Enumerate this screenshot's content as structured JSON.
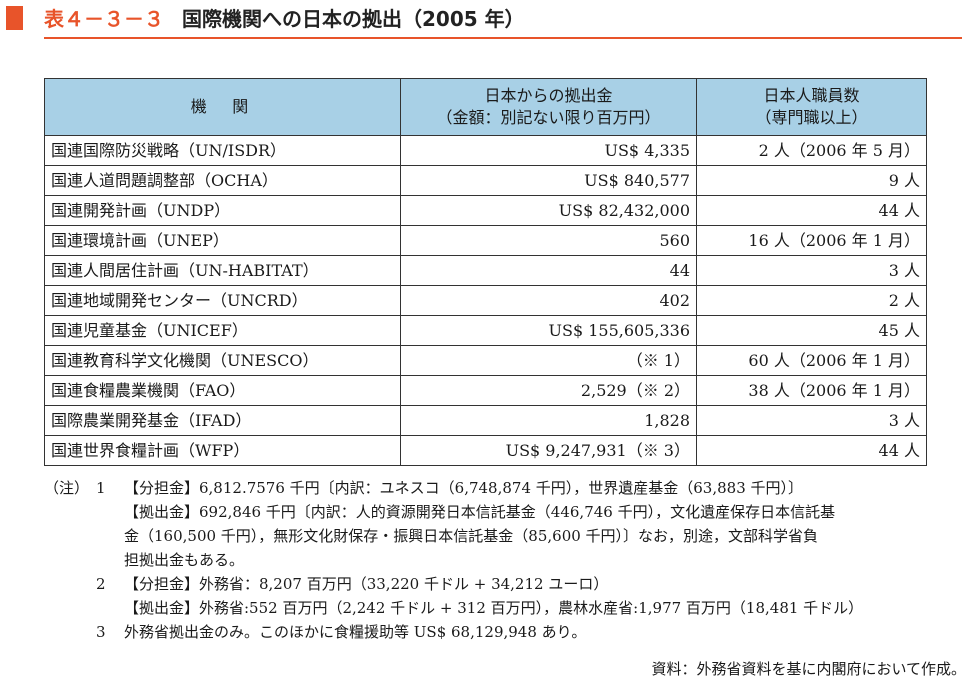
{
  "title": {
    "label": "表４－３－３",
    "text": "国際機関への日本の拠出（2005 年）"
  },
  "table": {
    "headers": {
      "org": "機関",
      "amount_line1": "日本からの拠出金",
      "amount_line2": "（金額：別記ない限り百万円）",
      "staff_line1": "日本人職員数",
      "staff_line2": "（専門職以上）"
    },
    "rows": [
      {
        "org": "国連国際防災戦略（UN/ISDR）",
        "amount": "US$ 4,335",
        "staff": "2 人（2006 年 5 月）"
      },
      {
        "org": "国連人道問題調整部（OCHA）",
        "amount": "US$ 840,577",
        "staff": "9 人"
      },
      {
        "org": "国連開発計画（UNDP）",
        "amount": "US$ 82,432,000",
        "staff": "44 人"
      },
      {
        "org": "国連環境計画（UNEP）",
        "amount": "560",
        "staff": "16 人（2006 年 1 月）"
      },
      {
        "org": "国連人間居住計画（UN-HABITAT）",
        "amount": "44",
        "staff": "3 人"
      },
      {
        "org": "国連地域開発センター（UNCRD）",
        "amount": "402",
        "staff": "2 人"
      },
      {
        "org": "国連児童基金（UNICEF）",
        "amount": "US$ 155,605,336",
        "staff": "45 人"
      },
      {
        "org": "国連教育科学文化機関（UNESCO）",
        "amount": "（※ 1）",
        "staff": "60 人（2006 年 1 月）"
      },
      {
        "org": "国連食糧農業機関（FAO）",
        "amount": "2,529（※ 2）",
        "staff": "38 人（2006 年 1 月）"
      },
      {
        "org": "国際農業開発基金（IFAD）",
        "amount": "1,828",
        "staff": "3 人"
      },
      {
        "org": "国連世界食糧計画（WFP）",
        "amount": "US$ 9,247,931（※ 3）",
        "staff": "44 人"
      }
    ]
  },
  "notes": {
    "marker": "（注）",
    "n1": "1",
    "n1_line1": "【分担金】6,812.7576 千円〔内訳：ユネスコ（6,748,874 千円），世界遺産基金（63,883 千円）〕",
    "n1_line2": "【拠出金】692,846 千円〔内訳：人的資源開発日本信託基金（446,746 千円），文化遺産保存日本信託基",
    "n1_line3": "金（160,500 千円），無形文化財保存・振興日本信託基金（85,600 千円）〕なお，別途，文部科学省負",
    "n1_line4": "担拠出金もある。",
    "n2": "2",
    "n2_line1": "【分担金】外務省：8,207 百万円（33,220 千ドル + 34,212 ユーロ）",
    "n2_line2": "【拠出金】外務省:552 百万円（2,242 千ドル + 312 百万円），農林水産省:1,977 百万円（18,481 千ドル）",
    "n3": "3",
    "n3_line1": "外務省拠出金のみ。このほかに食糧援助等 US$ 68,129,948 あり。"
  },
  "source": "資料：外務省資料を基に内閣府において作成。",
  "colors": {
    "accent": "#e8542a",
    "header_bg": "#a8d0e6"
  }
}
